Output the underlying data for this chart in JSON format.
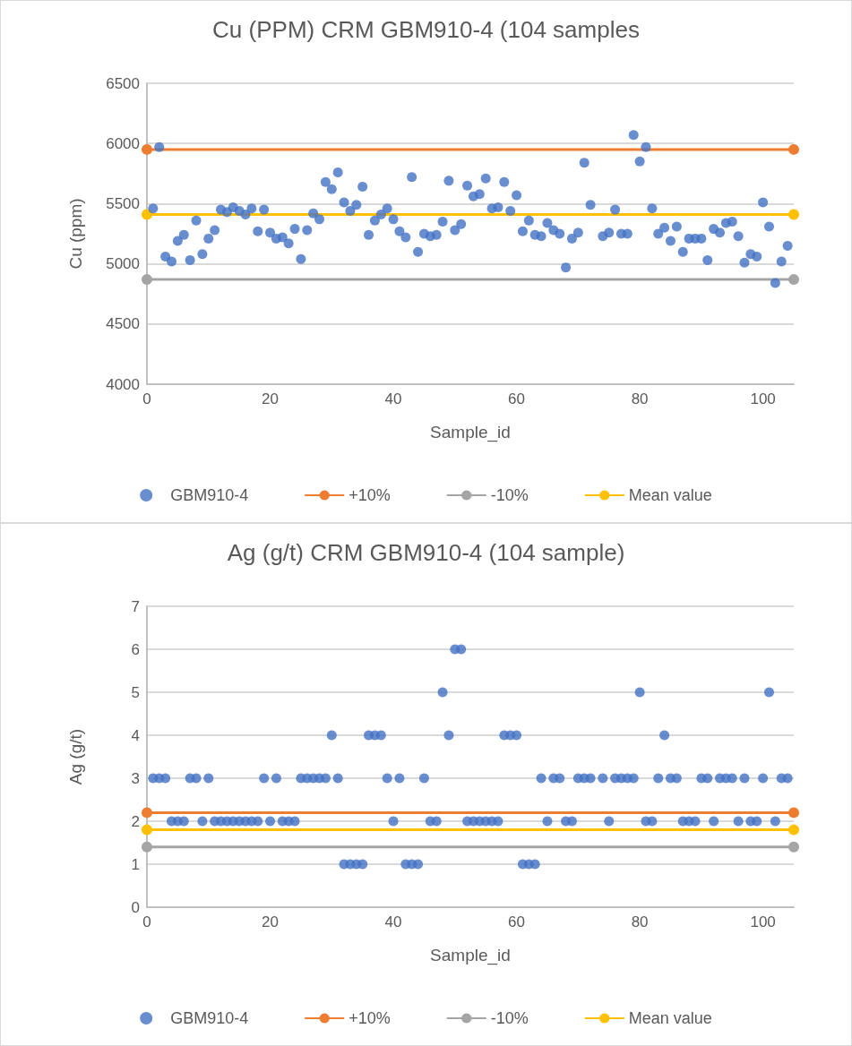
{
  "chart_data": [
    {
      "type": "scatter",
      "title": "Cu (PPM) CRM GBM910-4 (104 samples",
      "xlabel": "Sample_id",
      "ylabel": "Cu (ppm)",
      "xlim": [
        0,
        105
      ],
      "xticks": [
        0,
        20,
        40,
        60,
        80,
        100
      ],
      "ylim": [
        4000,
        6500
      ],
      "yticks": [
        4000,
        4500,
        5000,
        5500,
        6000,
        6500
      ],
      "grid": "y",
      "legend": "bottom",
      "marker": "circle",
      "series": [
        {
          "name": "GBM910-4",
          "color": "#4472c4",
          "x": [
            1,
            2,
            3,
            4,
            5,
            6,
            7,
            8,
            9,
            10,
            11,
            12,
            13,
            14,
            15,
            16,
            17,
            18,
            19,
            20,
            21,
            22,
            23,
            24,
            25,
            26,
            27,
            28,
            29,
            30,
            31,
            32,
            33,
            34,
            35,
            36,
            37,
            38,
            39,
            40,
            41,
            42,
            43,
            44,
            45,
            46,
            47,
            48,
            49,
            50,
            51,
            52,
            53,
            54,
            55,
            56,
            57,
            58,
            59,
            60,
            61,
            62,
            63,
            64,
            65,
            66,
            67,
            68,
            69,
            70,
            71,
            72,
            74,
            75,
            76,
            77,
            78,
            79,
            80,
            81,
            82,
            83,
            84,
            85,
            86,
            87,
            88,
            89,
            90,
            91,
            92,
            93,
            94,
            95,
            96,
            97,
            98,
            99,
            100,
            101,
            102,
            103,
            104
          ],
          "values": [
            5460,
            5970,
            5060,
            5020,
            5190,
            5240,
            5030,
            5360,
            5080,
            5210,
            5280,
            5450,
            5430,
            5470,
            5440,
            5410,
            5460,
            5270,
            5450,
            5260,
            5210,
            5220,
            5170,
            5290,
            5040,
            5280,
            5420,
            5370,
            5680,
            5620,
            5760,
            5510,
            5440,
            5490,
            5640,
            5240,
            5360,
            5410,
            5460,
            5370,
            5270,
            5220,
            5720,
            5100,
            5250,
            5230,
            5240,
            5350,
            5690,
            5280,
            5330,
            5650,
            5560,
            5580,
            5710,
            5460,
            5470,
            5680,
            5440,
            5570,
            5270,
            5360,
            5240,
            5230,
            5340,
            5280,
            5250,
            4970,
            5210,
            5260,
            5840,
            5490,
            5230,
            5260,
            5450,
            5250,
            5250,
            6070,
            5850,
            5970,
            5460,
            5250,
            5300,
            5190,
            5310,
            5100,
            5210,
            5210,
            5210,
            5030,
            5290,
            5260,
            5340,
            5350,
            5230,
            5010,
            5080,
            5060,
            5510,
            5310,
            4840,
            5020,
            5150
          ]
        },
        {
          "name": "+10%",
          "type": "line",
          "color": "#ed7d31",
          "x": [
            0,
            105
          ],
          "values": [
            5950,
            5950
          ]
        },
        {
          "name": "-10%",
          "type": "line",
          "color": "#a5a5a5",
          "x": [
            0,
            105
          ],
          "values": [
            4870,
            4870
          ]
        },
        {
          "name": "Mean value",
          "type": "line",
          "color": "#ffc000",
          "x": [
            0,
            105
          ],
          "values": [
            5410,
            5410
          ]
        }
      ]
    },
    {
      "type": "scatter",
      "title": "Ag (g/t) CRM GBM910-4 (104 sample)",
      "xlabel": "Sample_id",
      "ylabel": "Ag (g/t)",
      "xlim": [
        0,
        105
      ],
      "xticks": [
        0,
        20,
        40,
        60,
        80,
        100
      ],
      "ylim": [
        0,
        7
      ],
      "yticks": [
        0,
        1,
        2,
        3,
        4,
        5,
        6,
        7
      ],
      "grid": "y",
      "legend": "bottom",
      "marker": "circle",
      "series": [
        {
          "name": "GBM910-4",
          "color": "#4472c4",
          "x": [
            1,
            2,
            3,
            4,
            5,
            6,
            7,
            8,
            9,
            10,
            11,
            12,
            13,
            14,
            15,
            16,
            17,
            18,
            19,
            20,
            21,
            22,
            23,
            24,
            25,
            26,
            27,
            28,
            29,
            30,
            31,
            32,
            33,
            34,
            35,
            36,
            37,
            38,
            39,
            40,
            41,
            42,
            43,
            44,
            45,
            46,
            47,
            48,
            49,
            50,
            51,
            52,
            53,
            54,
            55,
            56,
            57,
            58,
            59,
            60,
            61,
            62,
            63,
            64,
            65,
            66,
            67,
            68,
            69,
            70,
            71,
            72,
            74,
            75,
            76,
            77,
            78,
            79,
            80,
            81,
            82,
            83,
            84,
            85,
            86,
            87,
            88,
            89,
            90,
            91,
            92,
            93,
            94,
            95,
            96,
            97,
            98,
            99,
            100,
            101,
            102,
            103,
            104
          ],
          "values": [
            3,
            3,
            3,
            2,
            2,
            2,
            3,
            3,
            2,
            3,
            2,
            2,
            2,
            2,
            2,
            2,
            2,
            2,
            3,
            2,
            3,
            2,
            2,
            2,
            3,
            3,
            3,
            3,
            3,
            4,
            3,
            1,
            1,
            1,
            1,
            4,
            4,
            4,
            3,
            2,
            3,
            1,
            1,
            1,
            3,
            2,
            2,
            5,
            4,
            6,
            6,
            2,
            2,
            2,
            2,
            2,
            2,
            4,
            4,
            4,
            1,
            1,
            1,
            3,
            2,
            3,
            3,
            2,
            2,
            3,
            3,
            3,
            3,
            2,
            3,
            3,
            3,
            3,
            5,
            2,
            2,
            3,
            4,
            3,
            3,
            2,
            2,
            2,
            3,
            3,
            2,
            3,
            3,
            3,
            2,
            3,
            2,
            2,
            3,
            5,
            2,
            3,
            3
          ]
        },
        {
          "name": "+10%",
          "type": "line",
          "color": "#ed7d31",
          "x": [
            0,
            105
          ],
          "values": [
            2.2,
            2.2
          ]
        },
        {
          "name": "-10%",
          "type": "line",
          "color": "#a5a5a5",
          "x": [
            0,
            105
          ],
          "values": [
            1.4,
            1.4
          ]
        },
        {
          "name": "Mean value",
          "type": "line",
          "color": "#ffc000",
          "x": [
            0,
            105
          ],
          "values": [
            1.8,
            1.8
          ]
        }
      ]
    }
  ]
}
